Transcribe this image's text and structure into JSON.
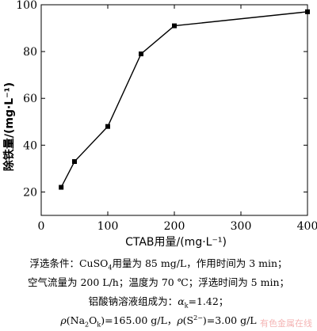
{
  "chart_data": {
    "type": "line",
    "x": [
      30,
      50,
      100,
      150,
      200,
      400
    ],
    "series": [
      {
        "values": [
          22,
          33,
          48,
          79,
          91,
          97
        ]
      }
    ],
    "xlim": [
      0,
      400
    ],
    "ylim": [
      10,
      100
    ],
    "xticks": [
      0,
      100,
      200,
      300,
      400
    ],
    "yticks": [
      20,
      40,
      60,
      80,
      100
    ],
    "xlabel": "CTAB用量/(mg·L⁻¹)",
    "ylabel": "除铁量/(mg·L⁻¹)",
    "marker": "square",
    "grid": false
  },
  "caption": {
    "line1_a": "浮选条件：CuSO",
    "line1_sub": "4",
    "line1_b": "用量为 85 mg/L，作用时间为 3 min；",
    "line2": "空气流量为 200 L/h；温度为 70 ℃；浮选时间为 5 min；",
    "line3_a": "铝酸钠溶液组成为：",
    "line3_sym": "α",
    "line3_sub": "k",
    "line3_b": "=1.42；",
    "line4_a": "ρ",
    "line4_b": "(Na",
    "line4_sub1": "2",
    "line4_c": "O",
    "line4_sub2": "k",
    "line4_d": ")=165.00 g/L，",
    "line4_e": "ρ",
    "line4_f": "(S",
    "line4_sup": "2−",
    "line4_g": ")=3.00 g/L"
  },
  "watermark": "有色金属在线"
}
